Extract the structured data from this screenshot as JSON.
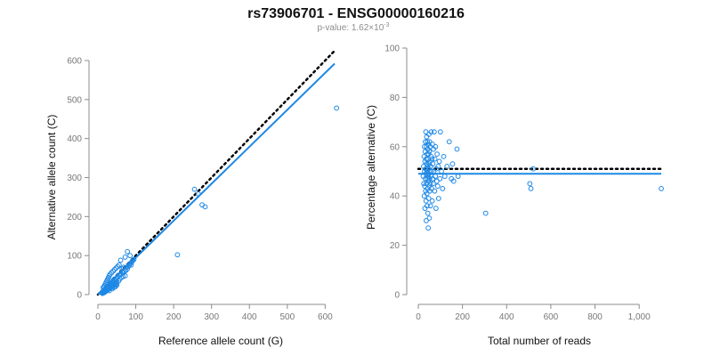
{
  "page": {
    "title": "rs73906701 - ENSG00000160216",
    "subtitle_prefix": "p-value: 1.62×10",
    "subtitle_exponent": "-3"
  },
  "colors": {
    "points": "#1e88e5",
    "fit_line": "#1e88e5",
    "reference_line": "#000000",
    "axis": "#8c8c8c"
  },
  "chart_data": [
    {
      "type": "scatter",
      "name": "allele-counts",
      "xlabel": "Reference allele count (G)",
      "ylabel": "Alternative allele count (C)",
      "xlim": [
        0,
        625
      ],
      "ylim": [
        0,
        600
      ],
      "xticks": [
        0,
        100,
        200,
        300,
        400,
        500,
        600
      ],
      "xtick_labels": [
        "0",
        "100",
        "200",
        "300",
        "400",
        "500",
        "600"
      ],
      "yticks": [
        0,
        100,
        200,
        300,
        400,
        500,
        600
      ],
      "ytick_labels": [
        "0",
        "100",
        "200",
        "300",
        "400",
        "500",
        "600"
      ],
      "grid": false,
      "points": [
        [
          10,
          5
        ],
        [
          12,
          6
        ],
        [
          14,
          8
        ],
        [
          15,
          10
        ],
        [
          16,
          12
        ],
        [
          18,
          10
        ],
        [
          20,
          14
        ],
        [
          22,
          13
        ],
        [
          24,
          20
        ],
        [
          25,
          16
        ],
        [
          26,
          22
        ],
        [
          28,
          18
        ],
        [
          30,
          25
        ],
        [
          30,
          15
        ],
        [
          32,
          28
        ],
        [
          34,
          24
        ],
        [
          35,
          30
        ],
        [
          36,
          22
        ],
        [
          38,
          20
        ],
        [
          40,
          36
        ],
        [
          40,
          26
        ],
        [
          42,
          30
        ],
        [
          44,
          40
        ],
        [
          45,
          32
        ],
        [
          46,
          28
        ],
        [
          48,
          36
        ],
        [
          50,
          42
        ],
        [
          50,
          30
        ],
        [
          52,
          46
        ],
        [
          55,
          35
        ],
        [
          56,
          50
        ],
        [
          58,
          40
        ],
        [
          60,
          52
        ],
        [
          62,
          44
        ],
        [
          64,
          58
        ],
        [
          66,
          46
        ],
        [
          68,
          56
        ],
        [
          70,
          60
        ],
        [
          72,
          48
        ],
        [
          74,
          62
        ],
        [
          75,
          70
        ],
        [
          78,
          66
        ],
        [
          80,
          72
        ],
        [
          82,
          74
        ],
        [
          84,
          78
        ],
        [
          86,
          80
        ],
        [
          88,
          76
        ],
        [
          90,
          84
        ],
        [
          92,
          88
        ],
        [
          95,
          90
        ],
        [
          12,
          3
        ],
        [
          14,
          4
        ],
        [
          16,
          5
        ],
        [
          18,
          6
        ],
        [
          20,
          8
        ],
        [
          22,
          9
        ],
        [
          24,
          11
        ],
        [
          26,
          12
        ],
        [
          28,
          14
        ],
        [
          30,
          10
        ],
        [
          32,
          16
        ],
        [
          34,
          18
        ],
        [
          36,
          20
        ],
        [
          38,
          15
        ],
        [
          40,
          22
        ],
        [
          42,
          18
        ],
        [
          44,
          24
        ],
        [
          46,
          20
        ],
        [
          48,
          26
        ],
        [
          50,
          24
        ],
        [
          14,
          18
        ],
        [
          16,
          20
        ],
        [
          18,
          24
        ],
        [
          20,
          28
        ],
        [
          22,
          32
        ],
        [
          24,
          36
        ],
        [
          26,
          40
        ],
        [
          28,
          44
        ],
        [
          30,
          48
        ],
        [
          32,
          52
        ],
        [
          36,
          56
        ],
        [
          40,
          60
        ],
        [
          44,
          64
        ],
        [
          48,
          68
        ],
        [
          52,
          72
        ],
        [
          56,
          76
        ],
        [
          60,
          88
        ],
        [
          64,
          66
        ],
        [
          68,
          70
        ],
        [
          72,
          96
        ],
        [
          78,
          110
        ],
        [
          85,
          100
        ],
        [
          255,
          270
        ],
        [
          265,
          258
        ],
        [
          275,
          230
        ],
        [
          283,
          225
        ],
        [
          210,
          102
        ],
        [
          630,
          478
        ]
      ],
      "fit_line": [
        [
          0,
          0
        ],
        [
          625,
          592
        ]
      ],
      "reference_line": [
        [
          0,
          0
        ],
        [
          625,
          625
        ]
      ]
    },
    {
      "type": "scatter",
      "name": "percentage-alternative",
      "xlabel": "Total number of reads",
      "ylabel": "Percentage alternative (C)",
      "xlim": [
        0,
        1100
      ],
      "ylim": [
        0,
        100
      ],
      "xticks": [
        0,
        200,
        400,
        600,
        800,
        1000
      ],
      "xtick_labels": [
        "0",
        "200",
        "400",
        "600",
        "800",
        "1,000"
      ],
      "yticks": [
        0,
        20,
        40,
        60,
        80,
        100
      ],
      "ytick_labels": [
        "0",
        "20",
        "40",
        "60",
        "80",
        "100"
      ],
      "grid": false,
      "points": [
        [
          22,
          48
        ],
        [
          24,
          52
        ],
        [
          25,
          45
        ],
        [
          26,
          56
        ],
        [
          27,
          40
        ],
        [
          28,
          50
        ],
        [
          28,
          60
        ],
        [
          29,
          44
        ],
        [
          30,
          54
        ],
        [
          30,
          35
        ],
        [
          31,
          58
        ],
        [
          32,
          47
        ],
        [
          32,
          62
        ],
        [
          33,
          42
        ],
        [
          34,
          51
        ],
        [
          34,
          66
        ],
        [
          35,
          38
        ],
        [
          35,
          49
        ],
        [
          36,
          55
        ],
        [
          36,
          30
        ],
        [
          37,
          60
        ],
        [
          37,
          45
        ],
        [
          38,
          53
        ],
        [
          38,
          64
        ],
        [
          39,
          41
        ],
        [
          39,
          50
        ],
        [
          40,
          57
        ],
        [
          40,
          36
        ],
        [
          41,
          47
        ],
        [
          41,
          62
        ],
        [
          42,
          52
        ],
        [
          42,
          43
        ],
        [
          43,
          59
        ],
        [
          43,
          33
        ],
        [
          44,
          48
        ],
        [
          44,
          55
        ],
        [
          45,
          27
        ],
        [
          45,
          61
        ],
        [
          46,
          46
        ],
        [
          46,
          51
        ],
        [
          47,
          39
        ],
        [
          47,
          57
        ],
        [
          48,
          49
        ],
        [
          48,
          65
        ],
        [
          49,
          44
        ],
        [
          49,
          53
        ],
        [
          50,
          58
        ],
        [
          50,
          31
        ],
        [
          51,
          47
        ],
        [
          51,
          62
        ],
        [
          52,
          42
        ],
        [
          52,
          54
        ],
        [
          53,
          50
        ],
        [
          54,
          60
        ],
        [
          55,
          45
        ],
        [
          55,
          36
        ],
        [
          56,
          52
        ],
        [
          57,
          48
        ],
        [
          58,
          56
        ],
        [
          58,
          66
        ],
        [
          60,
          43
        ],
        [
          60,
          50
        ],
        [
          62,
          55
        ],
        [
          63,
          38
        ],
        [
          64,
          61
        ],
        [
          65,
          47
        ],
        [
          66,
          53
        ],
        [
          68,
          45
        ],
        [
          69,
          59
        ],
        [
          70,
          50
        ],
        [
          72,
          66
        ],
        [
          74,
          42
        ],
        [
          75,
          55
        ],
        [
          77,
          48
        ],
        [
          78,
          60
        ],
        [
          80,
          35
        ],
        [
          82,
          51
        ],
        [
          84,
          46
        ],
        [
          85,
          57
        ],
        [
          88,
          44
        ],
        [
          90,
          52
        ],
        [
          92,
          39
        ],
        [
          95,
          54
        ],
        [
          98,
          47
        ],
        [
          100,
          66
        ],
        [
          105,
          50
        ],
        [
          110,
          43
        ],
        [
          115,
          56
        ],
        [
          120,
          48
        ],
        [
          130,
          52
        ],
        [
          140,
          62
        ],
        [
          150,
          47
        ],
        [
          155,
          53
        ],
        [
          160,
          46
        ],
        [
          175,
          59
        ],
        [
          180,
          48
        ],
        [
          305,
          33
        ],
        [
          505,
          45
        ],
        [
          510,
          43
        ],
        [
          520,
          51
        ],
        [
          1100,
          43
        ]
      ],
      "fit_line": [
        [
          0,
          49
        ],
        [
          1100,
          49
        ]
      ],
      "reference_line": [
        [
          0,
          51
        ],
        [
          1100,
          51
        ]
      ]
    }
  ]
}
